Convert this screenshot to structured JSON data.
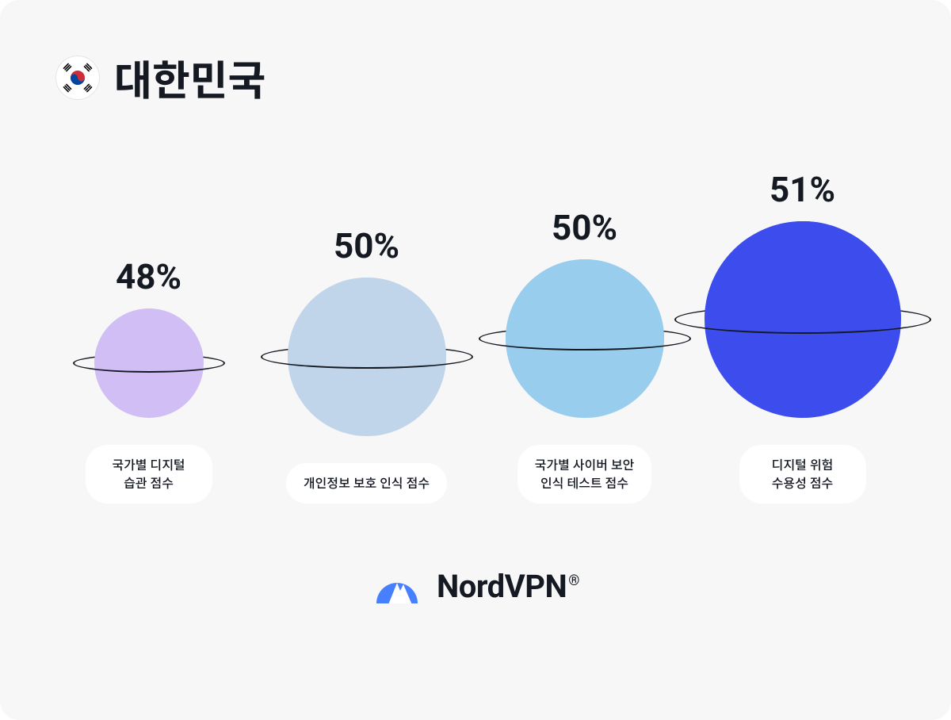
{
  "card": {
    "background_color": "#f7f7f8",
    "border_radius": 24
  },
  "header": {
    "country_name": "대한민국",
    "title_fontsize": 52,
    "title_color": "#151922",
    "flag": {
      "type": "south-korea",
      "bg_color": "#ffffff",
      "border_color": "#e5e5e5"
    }
  },
  "planets": {
    "ring_color": "#151922",
    "ring_stroke": 2.5,
    "percent_fontsize": 44,
    "percent_color": "#151922",
    "caption_bg": "#ffffff",
    "caption_fontsize": 16,
    "caption_color": "#151922",
    "items": [
      {
        "percent": "48%",
        "caption": "국가별 디지털\n습관 점수",
        "diameter": 138,
        "fill_color": "#d1bef5",
        "ring_width": 192,
        "ring_height": 24
      },
      {
        "percent": "50%",
        "caption": "개인정보 보호 인식 점수",
        "diameter": 200,
        "fill_color": "#c1d5ea",
        "ring_width": 268,
        "ring_height": 30
      },
      {
        "percent": "50%",
        "caption": "국가별 사이버 보안\n인식 테스트 점수",
        "diameter": 200,
        "fill_color": "#98cdee",
        "ring_width": 268,
        "ring_height": 30
      },
      {
        "percent": "51%",
        "caption": "디지털 위험\n수용성 점수",
        "diameter": 248,
        "fill_color": "#3d4ded",
        "ring_width": 324,
        "ring_height": 36
      }
    ]
  },
  "logo": {
    "brand_text": "NordVPN",
    "reg_mark": "®",
    "text_fontsize": 40,
    "text_color": "#151922",
    "icon_fill": "#4680ff",
    "mountain_fill": "#ffffff"
  }
}
